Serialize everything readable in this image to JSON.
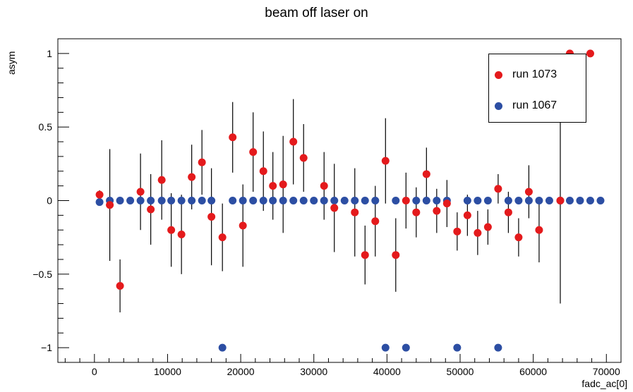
{
  "chart_data": {
    "type": "scatter",
    "title": "beam off laser on",
    "xlabel": "fadc_ac[0]",
    "ylabel": "asym",
    "xlim": [
      -5000,
      72000
    ],
    "ylim": [
      -1.1,
      1.1
    ],
    "x_ticks": [
      0,
      10000,
      20000,
      30000,
      40000,
      50000,
      60000,
      70000
    ],
    "x_tick_labels": [
      "0",
      "10000",
      "20000",
      "30000",
      "40000",
      "50000",
      "60000",
      "70000"
    ],
    "y_ticks": [
      -1,
      -0.5,
      0,
      0.5,
      1
    ],
    "y_tick_labels": [
      "−1",
      "−0.5",
      "0",
      "0.5",
      "1"
    ],
    "legend_position": "top-right",
    "series": [
      {
        "name": "run 1073",
        "color": "#e41a1c",
        "points": [
          {
            "x": 700,
            "y": 0.04,
            "err": 0.03
          },
          {
            "x": 2100,
            "y": -0.03,
            "err": 0.38
          },
          {
            "x": 3500,
            "y": -0.58,
            "err": 0.18
          },
          {
            "x": 6300,
            "y": 0.06,
            "err": 0.26
          },
          {
            "x": 7700,
            "y": -0.06,
            "err": 0.24
          },
          {
            "x": 9200,
            "y": 0.14,
            "err": 0.27
          },
          {
            "x": 10500,
            "y": -0.2,
            "err": 0.25
          },
          {
            "x": 11900,
            "y": -0.23,
            "err": 0.27
          },
          {
            "x": 13300,
            "y": 0.16,
            "err": 0.22
          },
          {
            "x": 14700,
            "y": 0.26,
            "err": 0.22
          },
          {
            "x": 16000,
            "y": -0.11,
            "err": 0.33
          },
          {
            "x": 17500,
            "y": -0.25,
            "err": 0.23
          },
          {
            "x": 18900,
            "y": 0.43,
            "err": 0.24
          },
          {
            "x": 20300,
            "y": -0.17,
            "err": 0.28
          },
          {
            "x": 21700,
            "y": 0.33,
            "err": 0.27
          },
          {
            "x": 23100,
            "y": 0.2,
            "err": 0.27
          },
          {
            "x": 24400,
            "y": 0.1,
            "err": 0.23
          },
          {
            "x": 25800,
            "y": 0.11,
            "err": 0.33
          },
          {
            "x": 27200,
            "y": 0.4,
            "err": 0.29
          },
          {
            "x": 28600,
            "y": 0.29,
            "err": 0.23
          },
          {
            "x": 31400,
            "y": 0.1,
            "err": 0.23
          },
          {
            "x": 32800,
            "y": -0.05,
            "err": 0.3
          },
          {
            "x": 35600,
            "y": -0.08,
            "err": 0.3
          },
          {
            "x": 37000,
            "y": -0.37,
            "err": 0.2
          },
          {
            "x": 38400,
            "y": -0.14,
            "err": 0.24
          },
          {
            "x": 39800,
            "y": 0.27,
            "err": 0.29
          },
          {
            "x": 41200,
            "y": -0.37,
            "err": 0.25
          },
          {
            "x": 42600,
            "y": 0.0,
            "err": 0.19
          },
          {
            "x": 44000,
            "y": -0.08,
            "err": 0.17
          },
          {
            "x": 45400,
            "y": 0.18,
            "err": 0.18
          },
          {
            "x": 46800,
            "y": -0.07,
            "err": 0.15
          },
          {
            "x": 48200,
            "y": -0.02,
            "err": 0.16
          },
          {
            "x": 49600,
            "y": -0.21,
            "err": 0.13
          },
          {
            "x": 51000,
            "y": -0.1,
            "err": 0.14
          },
          {
            "x": 52400,
            "y": -0.22,
            "err": 0.15
          },
          {
            "x": 53800,
            "y": -0.18,
            "err": 0.12
          },
          {
            "x": 55200,
            "y": 0.08,
            "err": 0.1
          },
          {
            "x": 56600,
            "y": -0.08,
            "err": 0.14
          },
          {
            "x": 58000,
            "y": -0.25,
            "err": 0.13
          },
          {
            "x": 59400,
            "y": 0.06,
            "err": 0.18
          },
          {
            "x": 60800,
            "y": -0.2,
            "err": 0.22
          },
          {
            "x": 63700,
            "y": 0.0,
            "err": 0.7
          },
          {
            "x": 65000,
            "y": 1.0,
            "err": 0.0
          },
          {
            "x": 67800,
            "y": 1.0,
            "err": 0.0
          }
        ]
      },
      {
        "name": "run 1067",
        "color": "#2c4ea3",
        "points": [
          {
            "x": 700,
            "y": -0.01
          },
          {
            "x": 2100,
            "y": 0.0
          },
          {
            "x": 3500,
            "y": 0.0
          },
          {
            "x": 4900,
            "y": 0.0
          },
          {
            "x": 6300,
            "y": 0.0
          },
          {
            "x": 7700,
            "y": 0.0
          },
          {
            "x": 9200,
            "y": 0.0
          },
          {
            "x": 10500,
            "y": 0.0
          },
          {
            "x": 11900,
            "y": 0.0
          },
          {
            "x": 13300,
            "y": 0.0
          },
          {
            "x": 14700,
            "y": 0.0
          },
          {
            "x": 16000,
            "y": 0.0
          },
          {
            "x": 17500,
            "y": -1.0
          },
          {
            "x": 18900,
            "y": 0.0
          },
          {
            "x": 20300,
            "y": 0.0
          },
          {
            "x": 21700,
            "y": 0.0
          },
          {
            "x": 23100,
            "y": 0.0
          },
          {
            "x": 24400,
            "y": 0.0
          },
          {
            "x": 25800,
            "y": 0.0
          },
          {
            "x": 27200,
            "y": 0.0
          },
          {
            "x": 28600,
            "y": 0.0
          },
          {
            "x": 30000,
            "y": 0.0
          },
          {
            "x": 31400,
            "y": 0.0
          },
          {
            "x": 32800,
            "y": 0.0
          },
          {
            "x": 34200,
            "y": 0.0
          },
          {
            "x": 35600,
            "y": 0.0
          },
          {
            "x": 37000,
            "y": 0.0
          },
          {
            "x": 38400,
            "y": 0.0
          },
          {
            "x": 39800,
            "y": -1.0
          },
          {
            "x": 41200,
            "y": 0.0
          },
          {
            "x": 42600,
            "y": -1.0
          },
          {
            "x": 44000,
            "y": 0.0
          },
          {
            "x": 45400,
            "y": 0.0
          },
          {
            "x": 46800,
            "y": 0.0
          },
          {
            "x": 48200,
            "y": 0.0
          },
          {
            "x": 49600,
            "y": -1.0
          },
          {
            "x": 51000,
            "y": 0.0
          },
          {
            "x": 52400,
            "y": 0.0
          },
          {
            "x": 53800,
            "y": 0.0
          },
          {
            "x": 55200,
            "y": -1.0
          },
          {
            "x": 56600,
            "y": 0.0
          },
          {
            "x": 58000,
            "y": 0.0
          },
          {
            "x": 59400,
            "y": 0.0
          },
          {
            "x": 60800,
            "y": 0.0
          },
          {
            "x": 62200,
            "y": 0.0
          },
          {
            "x": 63700,
            "y": 0.0
          },
          {
            "x": 65000,
            "y": 0.0
          },
          {
            "x": 66400,
            "y": 0.0
          },
          {
            "x": 67800,
            "y": 0.0
          },
          {
            "x": 69200,
            "y": 0.0
          }
        ]
      }
    ]
  }
}
